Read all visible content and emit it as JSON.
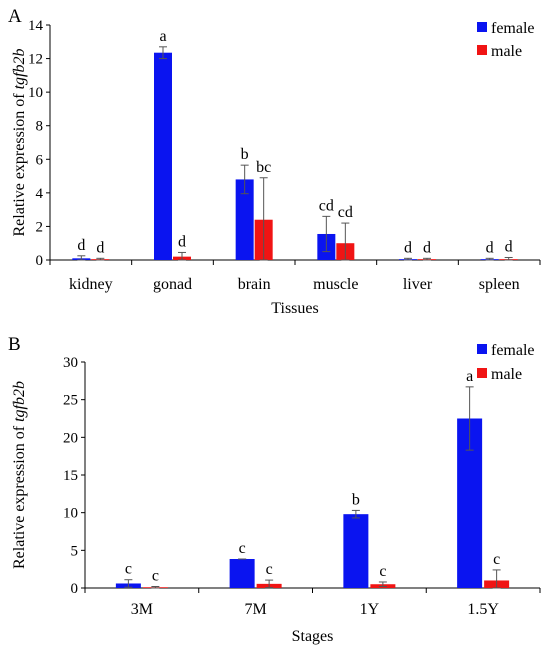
{
  "chart_data": [
    {
      "panel": "A",
      "type": "bar",
      "title": "",
      "xlabel": "Tissues",
      "ylabel_prefix": "Relative expression of ",
      "ylabel_gene": "tgfb2b",
      "ylim": [
        0,
        14
      ],
      "yticks": [
        0,
        2,
        4,
        6,
        8,
        10,
        12,
        14
      ],
      "categories": [
        "kidney",
        "gonad",
        "brain",
        "muscle",
        "liver",
        "spleen"
      ],
      "legend_position": "top-right",
      "series": [
        {
          "name": "female",
          "color": "#0a14f0",
          "values": [
            0.1,
            12.35,
            4.8,
            1.55,
            0.05,
            0.05
          ],
          "errors": [
            0.15,
            0.35,
            0.85,
            1.05,
            0.05,
            0.05
          ],
          "labels": [
            "d",
            "a",
            "b",
            "cd",
            "d",
            "d"
          ]
        },
        {
          "name": "male",
          "color": "#f01414",
          "values": [
            0.05,
            0.2,
            2.4,
            1.0,
            0.05,
            0.05
          ],
          "errors": [
            0.05,
            0.25,
            2.5,
            1.2,
            0.05,
            0.1
          ],
          "labels": [
            "d",
            "d",
            "bc",
            "cd",
            "d",
            "d"
          ]
        }
      ]
    },
    {
      "panel": "B",
      "type": "bar",
      "title": "",
      "xlabel": "Stages",
      "ylabel_prefix": "Relative expression of ",
      "ylabel_gene": "tgfb2b",
      "ylim": [
        0,
        30
      ],
      "yticks": [
        0,
        5,
        10,
        15,
        20,
        25,
        30
      ],
      "categories": [
        "3M",
        "7M",
        "1Y",
        "1.5Y"
      ],
      "legend_position": "top-right",
      "series": [
        {
          "name": "female",
          "color": "#0a14f0",
          "values": [
            0.6,
            3.85,
            9.8,
            22.5
          ],
          "errors": [
            0.5,
            0.0,
            0.5,
            4.2
          ],
          "labels": [
            "c",
            "c",
            "b",
            "a"
          ]
        },
        {
          "name": "male",
          "color": "#f01414",
          "values": [
            0.1,
            0.55,
            0.5,
            1.0
          ],
          "errors": [
            0.1,
            0.5,
            0.3,
            1.4
          ],
          "labels": [
            "c",
            "c",
            "c",
            "c"
          ]
        }
      ]
    }
  ]
}
